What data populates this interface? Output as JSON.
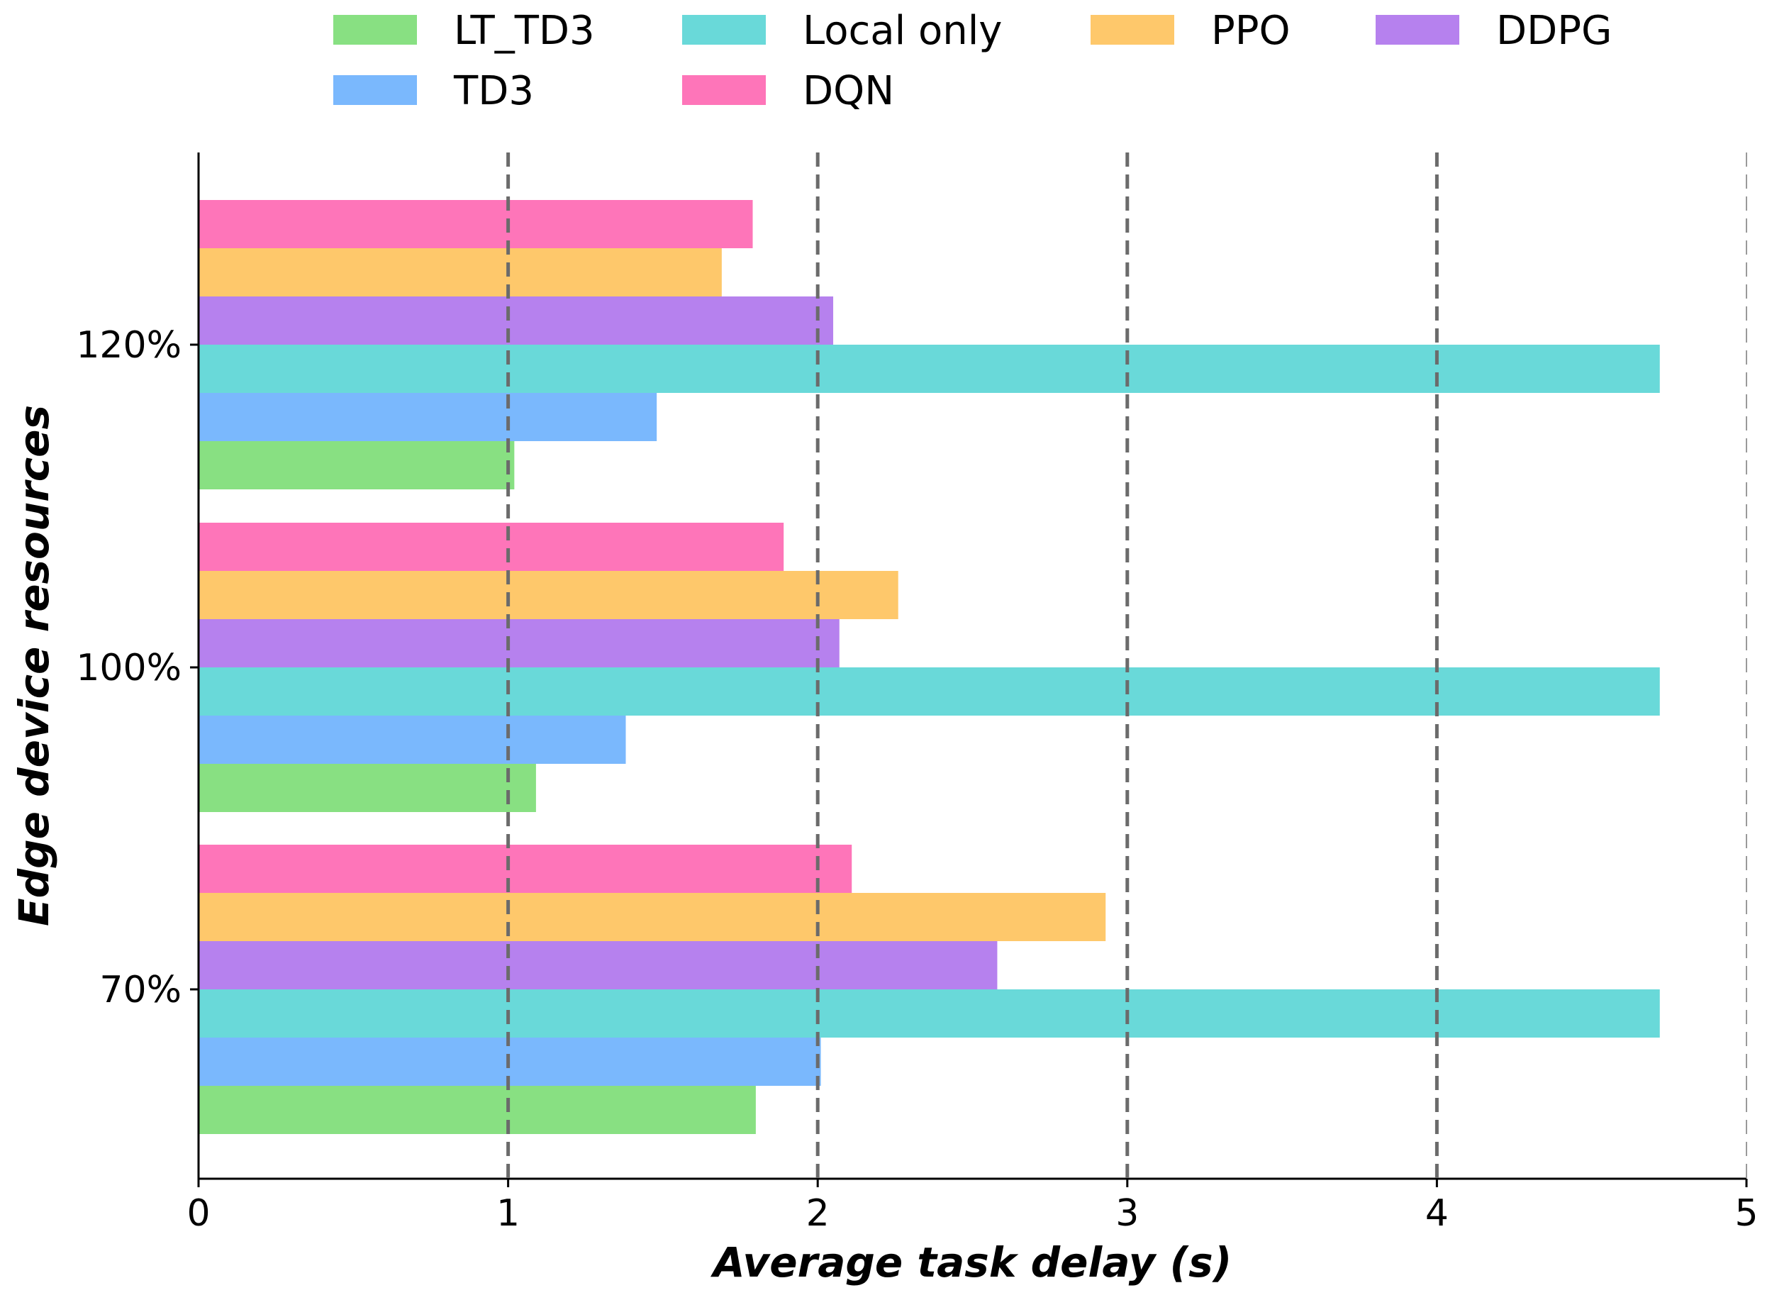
{
  "chart_data": {
    "type": "bar",
    "orientation": "horizontal",
    "title": "",
    "xlabel": "Average task delay (s)",
    "ylabel": "Edge device resources",
    "xlim": [
      0,
      5
    ],
    "xticks": [
      "0",
      "1",
      "2",
      "3",
      "4",
      "5"
    ],
    "categories": [
      "70%",
      "100%",
      "120%"
    ],
    "grid": "vertical dashed lines at x = 1, 2, 3, 4",
    "legend_position": "top",
    "series": [
      {
        "name": "LT_TD3",
        "color": "#88e082",
        "values": [
          1.8,
          1.09,
          1.02
        ]
      },
      {
        "name": "TD3",
        "color": "#7ab8fd",
        "values": [
          2.01,
          1.38,
          1.48
        ]
      },
      {
        "name": "Local only",
        "color": "#69d9d9",
        "values": [
          4.72,
          4.72,
          4.72
        ]
      },
      {
        "name": "DDPG",
        "color": "#b681ee",
        "values": [
          2.58,
          2.07,
          2.05
        ]
      },
      {
        "name": "PPO",
        "color": "#fec86b",
        "values": [
          2.93,
          2.26,
          1.69
        ]
      },
      {
        "name": "DQN",
        "color": "#fe75b9",
        "values": [
          2.11,
          1.89,
          1.79
        ]
      }
    ],
    "legend_order": [
      "LT_TD3",
      "Local only",
      "PPO",
      "DDPG",
      "TD3",
      "DQN"
    ]
  }
}
